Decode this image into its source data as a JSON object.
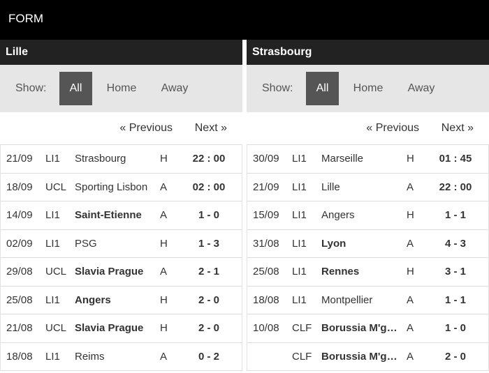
{
  "header": {
    "title": "FORM"
  },
  "filter": {
    "show_label": "Show:",
    "all": "All",
    "home": "Home",
    "away": "Away"
  },
  "pager": {
    "previous": "« Previous",
    "next": "Next »"
  },
  "teams": [
    {
      "name": "Lille",
      "matches": [
        {
          "date": "21/09",
          "comp": "LI1",
          "opponent": "Strasbourg",
          "ha": "H",
          "score": "22 : 00",
          "bold": false
        },
        {
          "date": "18/09",
          "comp": "UCL",
          "opponent": "Sporting Lisbon",
          "ha": "A",
          "score": "02 : 00",
          "bold": false
        },
        {
          "date": "14/09",
          "comp": "LI1",
          "opponent": "Saint-Etienne",
          "ha": "A",
          "score": "1 - 0",
          "bold": true
        },
        {
          "date": "02/09",
          "comp": "LI1",
          "opponent": "PSG",
          "ha": "H",
          "score": "1 - 3",
          "bold": false
        },
        {
          "date": "29/08",
          "comp": "UCL",
          "opponent": "Slavia Prague",
          "ha": "A",
          "score": "2 - 1",
          "bold": true
        },
        {
          "date": "25/08",
          "comp": "LI1",
          "opponent": "Angers",
          "ha": "H",
          "score": "2 - 0",
          "bold": true
        },
        {
          "date": "21/08",
          "comp": "UCL",
          "opponent": "Slavia Prague",
          "ha": "H",
          "score": "2 - 0",
          "bold": true
        },
        {
          "date": "18/08",
          "comp": "LI1",
          "opponent": "Reims",
          "ha": "A",
          "score": "0 - 2",
          "bold": false
        }
      ]
    },
    {
      "name": "Strasbourg",
      "matches": [
        {
          "date": "30/09",
          "comp": "LI1",
          "opponent": "Marseille",
          "ha": "H",
          "score": "01 : 45",
          "bold": false
        },
        {
          "date": "21/09",
          "comp": "LI1",
          "opponent": "Lille",
          "ha": "A",
          "score": "22 : 00",
          "bold": false
        },
        {
          "date": "15/09",
          "comp": "LI1",
          "opponent": "Angers",
          "ha": "H",
          "score": "1 - 1",
          "bold": false
        },
        {
          "date": "31/08",
          "comp": "LI1",
          "opponent": "Lyon",
          "ha": "A",
          "score": "4 - 3",
          "bold": true
        },
        {
          "date": "25/08",
          "comp": "LI1",
          "opponent": "Rennes",
          "ha": "H",
          "score": "3 - 1",
          "bold": true
        },
        {
          "date": "18/08",
          "comp": "LI1",
          "opponent": "Montpellier",
          "ha": "A",
          "score": "1 - 1",
          "bold": false
        },
        {
          "date": "10/08",
          "comp": "CLF",
          "opponent": "Borussia M'gladbach",
          "ha": "A",
          "score": "1 - 0",
          "bold": true
        },
        {
          "date": "",
          "comp": "CLF",
          "opponent": "Borussia M'gladbach",
          "ha": "A",
          "score": "2 - 0",
          "bold": true
        }
      ]
    }
  ]
}
